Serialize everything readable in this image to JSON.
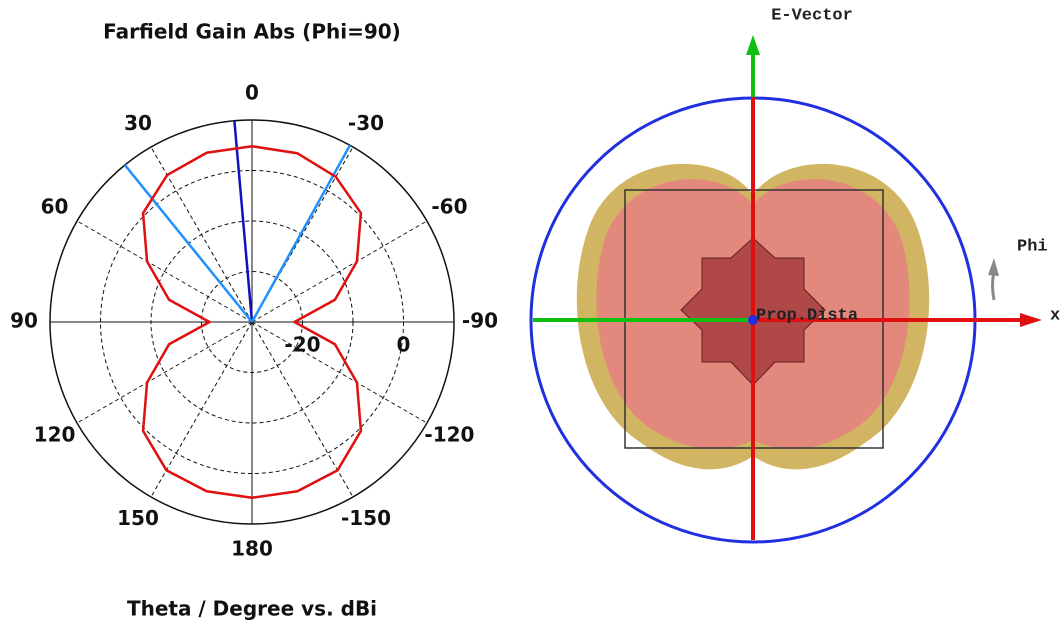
{
  "chart_data": {
    "type": "polar",
    "title": "Farfield Gain Abs (Phi=90)",
    "xlabel": "Theta / Degree vs. dBi",
    "x": [
      -180,
      -165,
      -150,
      -135,
      -120,
      -105,
      -90,
      -75,
      -60,
      -45,
      -30,
      -15,
      0,
      15,
      30,
      45,
      60,
      75,
      90,
      105,
      120,
      135,
      150,
      165,
      180
    ],
    "series": [
      {
        "color": "#e01010",
        "values": [
          4.8,
          4.7,
          3.9,
          0.5,
          -6,
          -13,
          -21.6,
          -13,
          -6,
          0.5,
          3.2,
          4.6,
          4.8,
          4.7,
          3.6,
          0.5,
          -6,
          -13,
          -21.6,
          -13,
          -6,
          0.5,
          3.9,
          4.7,
          4.8
        ]
      }
    ],
    "rlim": [
      -30,
      10
    ],
    "rticks": [
      -20,
      0
    ],
    "rgrid": [
      -20,
      -10,
      0
    ],
    "thetaticks": [
      0,
      30,
      60,
      90,
      120,
      150,
      180,
      -150,
      -120,
      -90,
      -60,
      -30
    ],
    "markers": [
      {
        "theta": 5,
        "color": "#1010c0"
      },
      {
        "theta": 39,
        "color": "#2090ff"
      },
      {
        "theta": -29,
        "color": "#2090ff"
      }
    ],
    "grid": true
  },
  "view3d": {
    "labels": [
      "E-Vector",
      "Phi",
      "x",
      "Prop.Dista"
    ]
  }
}
